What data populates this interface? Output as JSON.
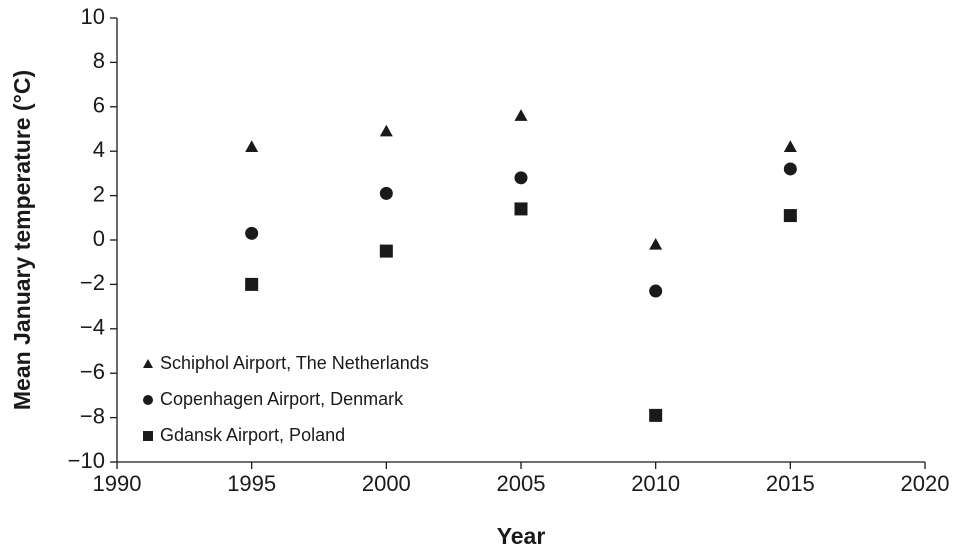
{
  "chart_data": {
    "type": "scatter",
    "xlabel": "Year",
    "ylabel": "Mean January temperature (°C)",
    "xlim": [
      1990,
      2020
    ],
    "xticks": [
      1990,
      1995,
      2000,
      2005,
      2010,
      2015,
      2020
    ],
    "ylim": [
      -10,
      10
    ],
    "yticks": [
      {
        "value": -10,
        "label": "−10"
      },
      {
        "value": -8,
        "label": "−8"
      },
      {
        "value": -6,
        "label": "−6"
      },
      {
        "value": -4,
        "label": "−4"
      },
      {
        "value": -2,
        "label": "−2"
      },
      0,
      2,
      4,
      6,
      8,
      10
    ],
    "grid": false,
    "legend": "lower left",
    "series": [
      {
        "name": "Schiphol Airport, The Netherlands",
        "color": "#1a1a1a",
        "marker": "triangle",
        "x": [
          1995,
          2000,
          2005,
          2010,
          2015
        ],
        "values": [
          4.2,
          4.9,
          5.6,
          -0.2,
          4.2
        ]
      },
      {
        "name": "Copenhagen Airport, Denmark",
        "color": "#1a1a1a",
        "marker": "circle",
        "x": [
          1995,
          2000,
          2005,
          2010,
          2015
        ],
        "values": [
          0.3,
          2.1,
          2.8,
          -2.3,
          3.2
        ]
      },
      {
        "name": "Gdansk Airport, Poland",
        "color": "#1a1a1a",
        "marker": "square",
        "x": [
          1995,
          2000,
          2005,
          2010,
          2015
        ],
        "values": [
          -2.0,
          -0.5,
          1.4,
          -7.9,
          1.1
        ]
      }
    ]
  }
}
